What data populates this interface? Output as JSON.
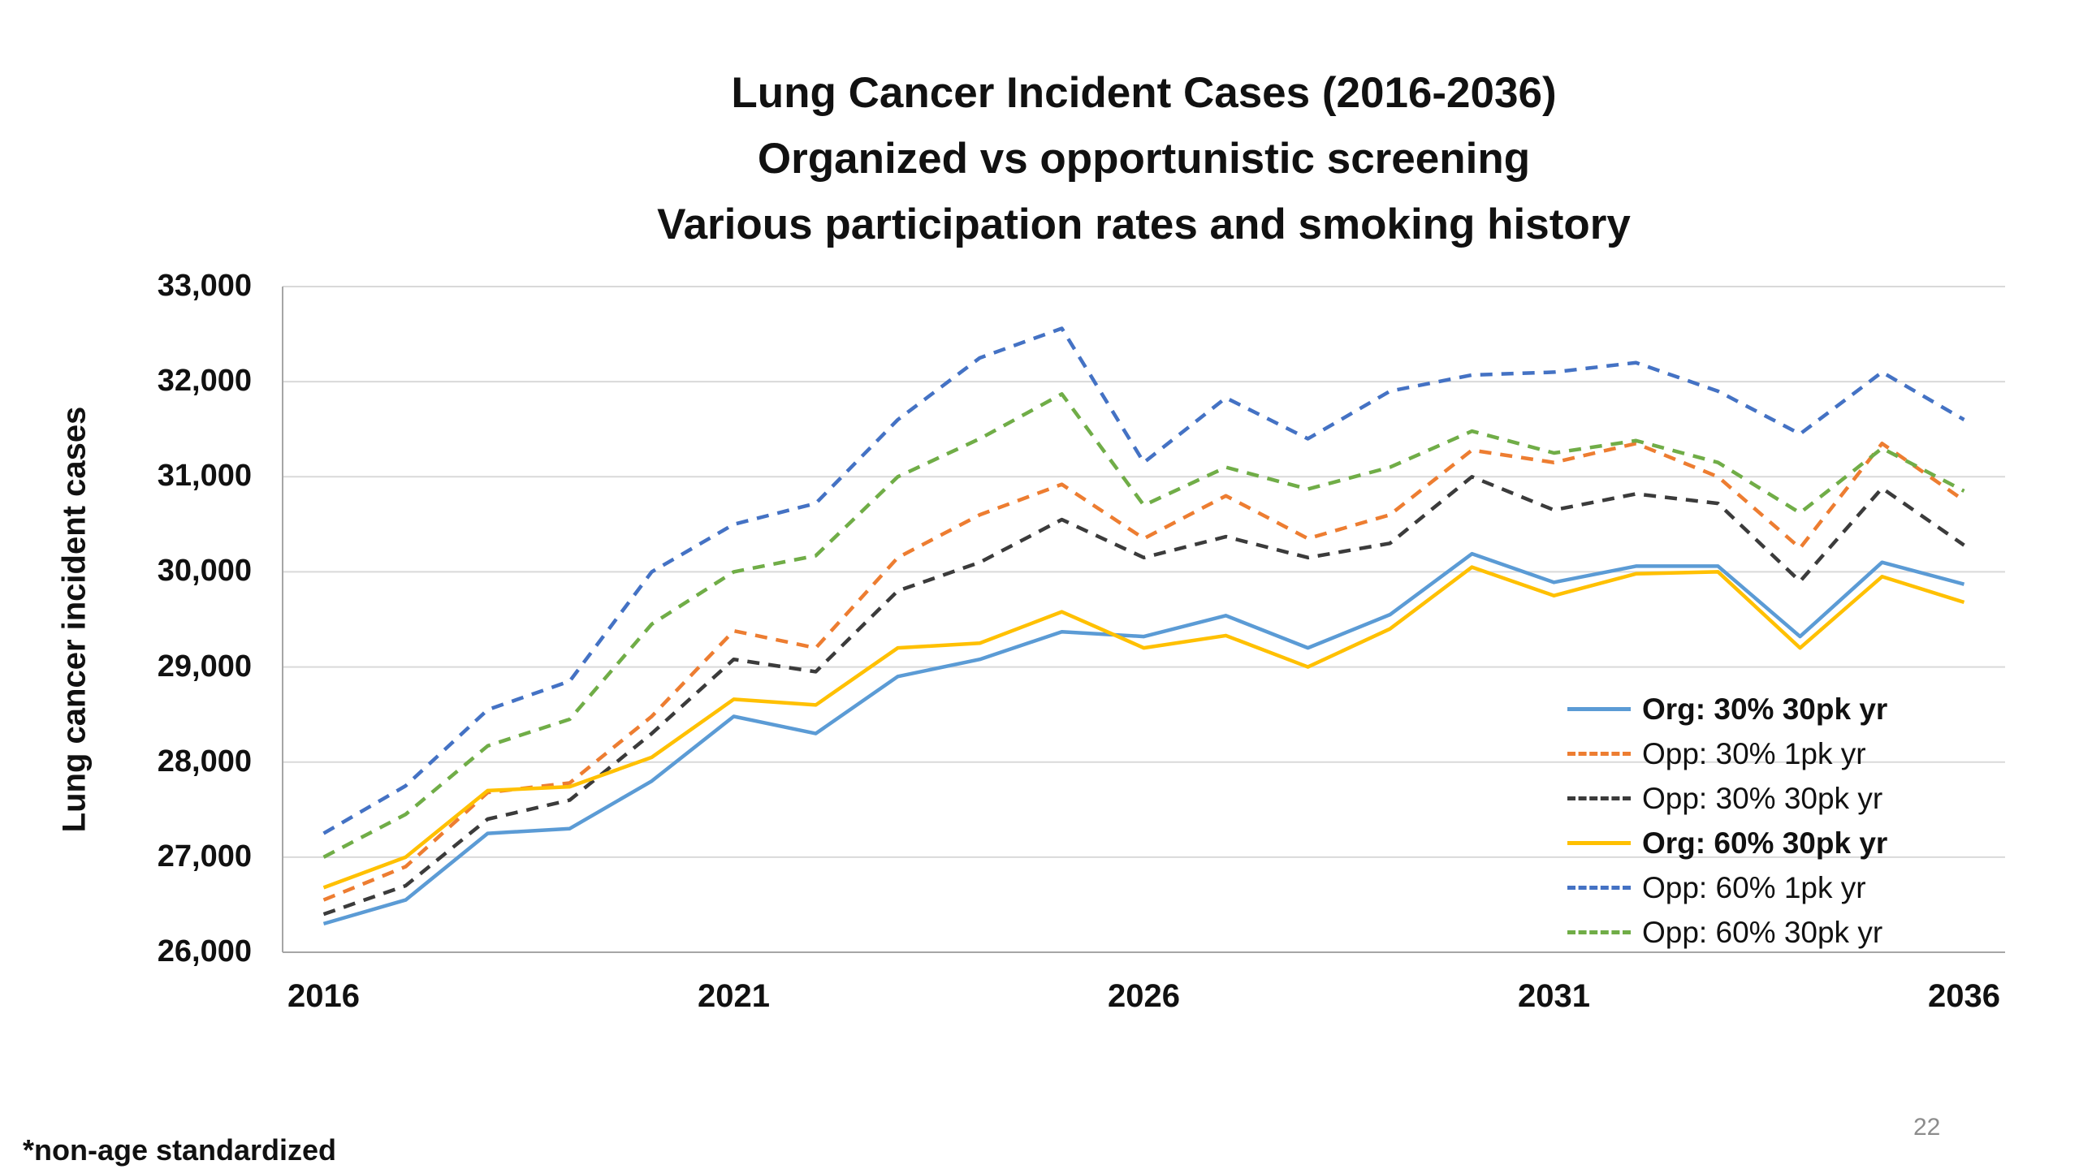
{
  "title_lines": [
    "Lung Cancer Incident Cases (2016-2036)",
    "Organized vs opportunistic screening",
    "Various participation rates and smoking history"
  ],
  "footnote": "*non-age standardized",
  "page_number": "22",
  "chart_data": {
    "type": "line",
    "title": "Lung Cancer Incident Cases (2016-2036)",
    "subtitle": "Organized vs opportunistic screening — Various participation rates and smoking history",
    "xlabel": "",
    "ylabel": "Lung cancer incident cases",
    "ylim": [
      26000,
      33000
    ],
    "y_ticks": [
      26000,
      27000,
      28000,
      29000,
      30000,
      31000,
      32000,
      33000
    ],
    "grid": true,
    "legend_position": "inside right",
    "x": [
      2016,
      2017,
      2018,
      2019,
      2020,
      2021,
      2022,
      2023,
      2024,
      2025,
      2026,
      2027,
      2028,
      2029,
      2030,
      2031,
      2032,
      2033,
      2034,
      2035,
      2036
    ],
    "x_tick_indices": [
      0,
      5,
      10,
      15,
      20
    ],
    "x_tick_labels": [
      "2016",
      "2021",
      "2026",
      "2031",
      "2036"
    ],
    "series": [
      {
        "name": "Org: 30% 30pk yr",
        "color": "#5B9BD5",
        "dash": "solid",
        "legend_bold": true,
        "values": [
          26300,
          26550,
          27250,
          27300,
          27800,
          28480,
          28300,
          28900,
          29080,
          29370,
          29320,
          29540,
          29200,
          29550,
          30190,
          29890,
          30060,
          30060,
          29320,
          30100,
          29870
        ]
      },
      {
        "name": "Opp: 30% 1pk yr",
        "color": "#ED7D31",
        "dash": "dashed",
        "legend_bold": false,
        "values": [
          26550,
          26900,
          27680,
          27780,
          28480,
          29380,
          29200,
          30150,
          30600,
          30920,
          30350,
          30800,
          30350,
          30600,
          31280,
          31150,
          31350,
          31000,
          30250,
          31350,
          30750
        ]
      },
      {
        "name": "Opp: 30% 30pk yr",
        "color": "#3b3b3b",
        "dash": "dashed",
        "legend_bold": false,
        "values": [
          26400,
          26700,
          27400,
          27600,
          28300,
          29080,
          28950,
          29800,
          30100,
          30550,
          30150,
          30370,
          30150,
          30300,
          31000,
          30650,
          30820,
          30720,
          29900,
          30880,
          30280
        ]
      },
      {
        "name": "Org: 60% 30pk yr",
        "color": "#FFC000",
        "dash": "solid",
        "legend_bold": true,
        "values": [
          26680,
          27000,
          27700,
          27740,
          28050,
          28660,
          28600,
          29200,
          29250,
          29580,
          29200,
          29330,
          29000,
          29400,
          30050,
          29750,
          29980,
          30000,
          29200,
          29950,
          29680
        ]
      },
      {
        "name": "Opp: 60% 1pk yr",
        "color": "#4472C4",
        "dash": "dashed",
        "legend_bold": false,
        "values": [
          27250,
          27750,
          28550,
          28850,
          30000,
          30500,
          30720,
          31600,
          32250,
          32560,
          31150,
          31830,
          31400,
          31900,
          32070,
          32100,
          32200,
          31900,
          31450,
          32100,
          31600
        ]
      },
      {
        "name": "Opp: 60% 30pk yr",
        "color": "#70AD47",
        "dash": "dashed",
        "legend_bold": false,
        "values": [
          27000,
          27450,
          28170,
          28450,
          29450,
          30000,
          30170,
          31000,
          31400,
          31870,
          30700,
          31100,
          30870,
          31100,
          31480,
          31250,
          31380,
          31150,
          30620,
          31300,
          30850
        ]
      }
    ]
  }
}
